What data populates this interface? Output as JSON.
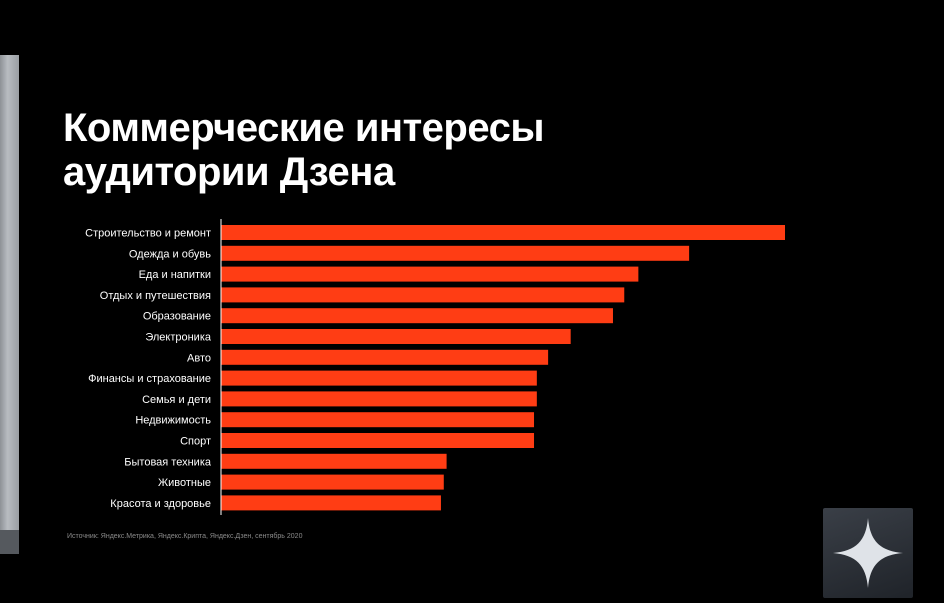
{
  "slide": {
    "title_line1": "Коммерческие интересы",
    "title_line2": "аудитории Дзена",
    "source": "Источник: Яндекс.Метрика, Яндекс.Крипта, Яндекс.Дзен, сентябрь 2020"
  },
  "logo": {
    "icon": "zen-star-icon"
  },
  "colors": {
    "background": "#000000",
    "bar": "#ff3d14",
    "text": "#ffffff",
    "axis": "#ffffff"
  },
  "chart_data": {
    "type": "bar",
    "orientation": "horizontal",
    "categories": [
      "Строительство и ремонт",
      "Одежда и обувь",
      "Еда и напитки",
      "Отдых и путешествия",
      "Образование",
      "Электроника",
      "Авто",
      "Финансы и страхование",
      "Семья и дети",
      "Недвижимость",
      "Спорт",
      "Бытовая техника",
      "Животные",
      "Красота и здоровье"
    ],
    "values": [
      100,
      83,
      74,
      71.5,
      69.5,
      62,
      58,
      56,
      56,
      55.5,
      55.5,
      40,
      39.5,
      39
    ],
    "xlim": [
      0,
      100
    ],
    "grid": false,
    "legend": "none"
  }
}
